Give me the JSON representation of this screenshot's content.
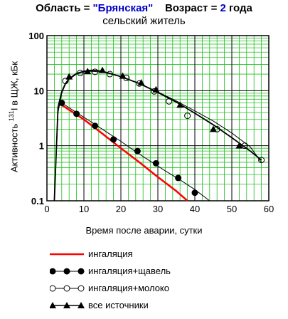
{
  "header": {
    "region_label": "Область = ",
    "region_value": "\"Брянская\"",
    "age_label": "Возраст = ",
    "age_value": "2",
    "age_unit": " года",
    "subtitle": "сельский житель"
  },
  "chart_data": {
    "type": "line",
    "xlabel": "Время после аварии, сутки",
    "ylabel": "Активность 131I в ЩЖ, кБк",
    "x_ticks": [
      0,
      10,
      20,
      30,
      40,
      50,
      60
    ],
    "y_ticks": [
      "0.1",
      "1",
      "10",
      "100"
    ],
    "xlim": [
      0,
      60
    ],
    "ylim": [
      0.1,
      100
    ],
    "yscale": "log",
    "grid": true,
    "series": [
      {
        "name": "ингаляция",
        "color": "#ff0000",
        "marker": "none",
        "x": [
          4,
          10,
          15,
          20,
          25,
          30,
          35,
          38
        ],
        "y": [
          5.5,
          3.0,
          1.65,
          0.9,
          0.5,
          0.27,
          0.15,
          0.1
        ]
      },
      {
        "name": "ингаляция+щавель",
        "color": "#000000",
        "marker": "filled-circle",
        "x": [
          4,
          8,
          12,
          16,
          20,
          24,
          28,
          32,
          36,
          40,
          44
        ],
        "y": [
          6.0,
          4.0,
          2.7,
          1.8,
          1.2,
          0.78,
          0.52,
          0.35,
          0.24,
          0.16,
          0.1
        ],
        "points_x": [
          4,
          8,
          13,
          18,
          24.5,
          29.5,
          35.5,
          40
        ],
        "points_y": [
          6.0,
          3.8,
          2.3,
          1.3,
          0.8,
          0.48,
          0.26,
          0.14
        ]
      },
      {
        "name": "ингаляция+молоко",
        "color": "#000000",
        "marker": "open-circle",
        "x": [
          2,
          3,
          4,
          5,
          6,
          8,
          10,
          12,
          14,
          16,
          20,
          25,
          30,
          35,
          40,
          45,
          50,
          55,
          58
        ],
        "y": [
          0.1,
          4.0,
          9.0,
          13.0,
          16.0,
          20.0,
          22.0,
          22.5,
          22.0,
          21.0,
          18.0,
          13.5,
          9.5,
          6.5,
          4.3,
          2.8,
          1.7,
          0.95,
          0.5
        ],
        "points_x": [
          5,
          9,
          13,
          17,
          21.5,
          25,
          29,
          33,
          38,
          46,
          53.5,
          58
        ],
        "points_y": [
          15.0,
          21.0,
          22.0,
          20.0,
          17.0,
          13.5,
          9.7,
          6.4,
          3.5,
          2.0,
          1.0,
          0.55
        ]
      },
      {
        "name": "все источники",
        "color": "#000000",
        "marker": "filled-triangle",
        "x": [
          2,
          3,
          4,
          5,
          6,
          8,
          10,
          12,
          14,
          16,
          20,
          25,
          30,
          35,
          40,
          45,
          50,
          55,
          58
        ],
        "y": [
          0.1,
          5.0,
          9.5,
          13.5,
          16.5,
          20.5,
          22.5,
          23.5,
          23.0,
          21.5,
          18.0,
          13.5,
          9.3,
          6.2,
          3.9,
          2.4,
          1.4,
          0.8,
          0.55
        ],
        "points_x": [
          6,
          11,
          15,
          20.5,
          25.5,
          29.5,
          36,
          45,
          52
        ],
        "points_y": [
          18.0,
          22.5,
          23.5,
          18.5,
          14.0,
          10.5,
          5.5,
          2.0,
          1.0
        ]
      }
    ]
  }
}
